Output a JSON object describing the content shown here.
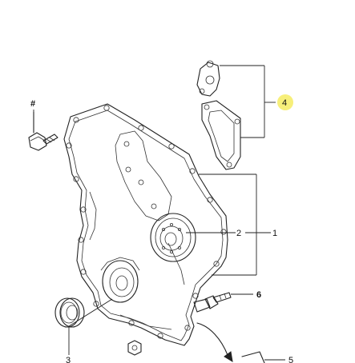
{
  "callouts": {
    "hash": "#",
    "c1": "1",
    "c2": "2",
    "c3": "3",
    "c4": "4",
    "c5": "5",
    "c6": "6"
  },
  "colors": {
    "highlight": "#f7ef7a",
    "line": "#222222"
  },
  "icons": [
    "bolt-icon",
    "hex-nut-icon",
    "seal-ring-icon",
    "direction-arrow-icon"
  ]
}
